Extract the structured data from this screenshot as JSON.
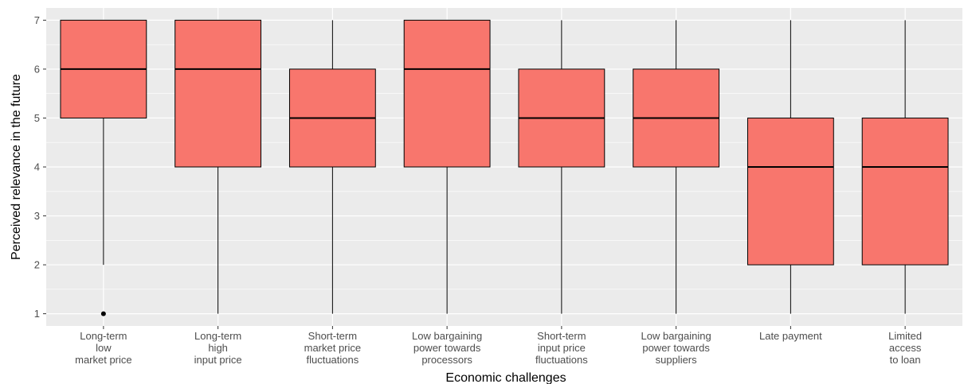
{
  "chart_data": {
    "type": "boxplot",
    "xlabel": "Economic challenges",
    "ylabel": "Perceived relevance in the future",
    "ylim": [
      0.75,
      7.25
    ],
    "yticks": [
      1,
      2,
      3,
      4,
      5,
      6,
      7
    ],
    "grid": true,
    "legend": "none",
    "colors": {
      "panel_background": "#ebebeb",
      "grid_major": "#ffffff",
      "box_fill": "#f8766d",
      "box_outline": "#000000",
      "tick_label": "#4d4d4d",
      "axis_title": "#000000"
    },
    "categories": [
      {
        "label_lines": [
          "Long-term",
          "low",
          "market price"
        ],
        "whisker_low": 2,
        "q1": 5,
        "median": 6,
        "q3": 7,
        "whisker_high": 7,
        "outliers": [
          1
        ]
      },
      {
        "label_lines": [
          "Long-term",
          "high",
          "input price"
        ],
        "whisker_low": 1,
        "q1": 4,
        "median": 6,
        "q3": 7,
        "whisker_high": 7,
        "outliers": []
      },
      {
        "label_lines": [
          "Short-term",
          "market price",
          "fluctuations"
        ],
        "whisker_low": 1,
        "q1": 4,
        "median": 5,
        "q3": 6,
        "whisker_high": 7,
        "outliers": []
      },
      {
        "label_lines": [
          "Low bargaining",
          "power towards",
          "processors"
        ],
        "whisker_low": 1,
        "q1": 4,
        "median": 6,
        "q3": 7,
        "whisker_high": 7,
        "outliers": []
      },
      {
        "label_lines": [
          "Short-term",
          "input price",
          "fluctuations"
        ],
        "whisker_low": 1,
        "q1": 4,
        "median": 5,
        "q3": 6,
        "whisker_high": 7,
        "outliers": []
      },
      {
        "label_lines": [
          "Low bargaining",
          "power towards",
          "suppliers"
        ],
        "whisker_low": 1,
        "q1": 4,
        "median": 5,
        "q3": 6,
        "whisker_high": 7,
        "outliers": []
      },
      {
        "label_lines": [
          "Late payment"
        ],
        "whisker_low": 1,
        "q1": 2,
        "median": 4,
        "q3": 5,
        "whisker_high": 7,
        "outliers": []
      },
      {
        "label_lines": [
          "Limited",
          "access",
          "to loan"
        ],
        "whisker_low": 1,
        "q1": 2,
        "median": 4,
        "q3": 5,
        "whisker_high": 7,
        "outliers": []
      }
    ]
  }
}
